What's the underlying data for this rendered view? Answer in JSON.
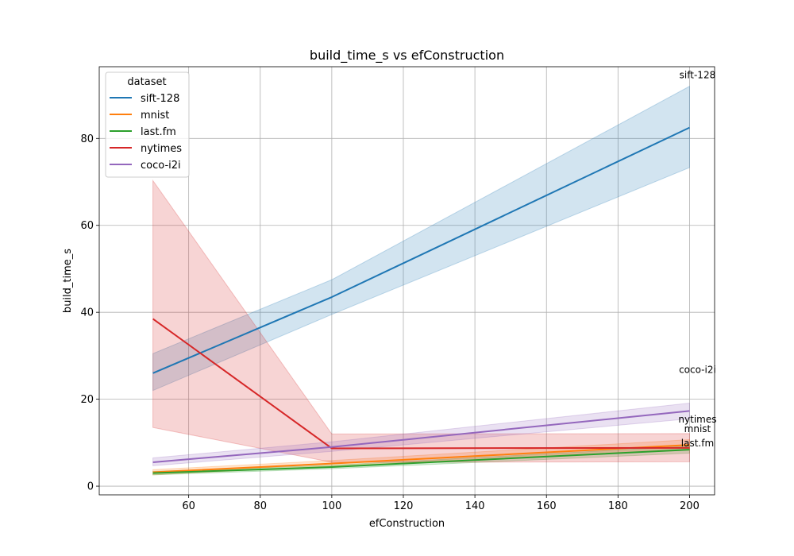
{
  "chart_data": {
    "type": "line",
    "title": "build_time_s vs efConstruction",
    "xlabel": "efConstruction",
    "ylabel": "build_time_s",
    "x": [
      50,
      100,
      200
    ],
    "xlim": [
      35,
      207
    ],
    "ylim": [
      -2,
      96.5
    ],
    "xticks": [
      60,
      80,
      100,
      120,
      140,
      160,
      180,
      200
    ],
    "yticks": [
      0,
      20,
      40,
      60,
      80
    ],
    "grid": true,
    "legend": {
      "title": "dataset",
      "placement": "top-left"
    },
    "series": [
      {
        "name": "sift-128",
        "color": "#1f77b4",
        "values": [
          26.0,
          43.5,
          82.5
        ],
        "lower": [
          22.0,
          39.5,
          73.3
        ],
        "upper": [
          30.5,
          47.5,
          92.0
        ]
      },
      {
        "name": "mnist",
        "color": "#ff7f0e",
        "values": [
          3.2,
          5.2,
          9.5
        ],
        "lower": [
          2.6,
          4.6,
          8.3
        ],
        "upper": [
          3.8,
          5.9,
          10.7
        ]
      },
      {
        "name": "last.fm",
        "color": "#2ca02c",
        "values": [
          3.0,
          4.4,
          8.4
        ],
        "lower": [
          2.6,
          4.0,
          7.6
        ],
        "upper": [
          3.4,
          4.8,
          9.2
        ]
      },
      {
        "name": "nytimes",
        "color": "#d62728",
        "values": [
          38.5,
          8.7,
          8.8
        ],
        "lower": [
          13.5,
          5.5,
          5.6
        ],
        "upper": [
          70.3,
          12.0,
          12.1
        ]
      },
      {
        "name": "coco-i2i",
        "color": "#9467bd",
        "values": [
          5.5,
          9.0,
          17.3
        ],
        "lower": [
          4.7,
          8.0,
          15.5
        ],
        "upper": [
          6.5,
          10.2,
          19.1
        ]
      }
    ],
    "annotations": [
      {
        "text": "sift-128",
        "x": 200,
        "y": 82.5
      },
      {
        "text": "coco-i2i",
        "x": 200,
        "y": 17.3
      },
      {
        "text": "nytimes",
        "x": 200,
        "y": 8.8
      },
      {
        "text": "mnist",
        "x": 200,
        "y": 9.5
      },
      {
        "text": "last.fm",
        "x": 200,
        "y": 8.4
      }
    ]
  }
}
